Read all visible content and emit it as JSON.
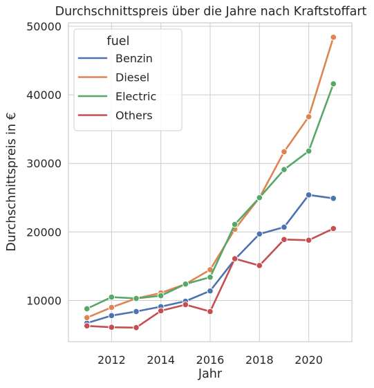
{
  "chart_data": {
    "type": "line",
    "title": "Durchschnittspreis über die Jahre nach Kraftstoffart",
    "xlabel": "Jahr",
    "ylabel": "Durchschnittspreis in €",
    "x": [
      2011,
      2012,
      2013,
      2014,
      2015,
      2016,
      2017,
      2018,
      2019,
      2020,
      2021
    ],
    "xlim": [
      2010.25,
      2021.75
    ],
    "ylim": [
      4000,
      50500
    ],
    "xticks": [
      2012,
      2014,
      2016,
      2018,
      2020
    ],
    "yticks": [
      10000,
      20000,
      30000,
      40000,
      50000
    ],
    "grid": true,
    "legend": {
      "title": "fuel",
      "position": "top-left"
    },
    "series": [
      {
        "name": "Benzin",
        "color": "#4c72b0",
        "values": [
          6700,
          7800,
          8400,
          9100,
          9900,
          11400,
          16000,
          19700,
          20700,
          25400,
          24900
        ]
      },
      {
        "name": "Diesel",
        "color": "#dd8452",
        "values": [
          7500,
          9000,
          10300,
          11100,
          12400,
          14500,
          20400,
          25000,
          31700,
          36800,
          48400
        ]
      },
      {
        "name": "Electric",
        "color": "#55a868",
        "values": [
          8800,
          10500,
          10300,
          10700,
          12400,
          13400,
          21100,
          25000,
          29100,
          31800,
          41600
        ]
      },
      {
        "name": "Others",
        "color": "#c44e52",
        "values": [
          6300,
          6100,
          6050,
          8500,
          9400,
          8400,
          16100,
          15100,
          18900,
          18800,
          20500
        ]
      }
    ]
  }
}
